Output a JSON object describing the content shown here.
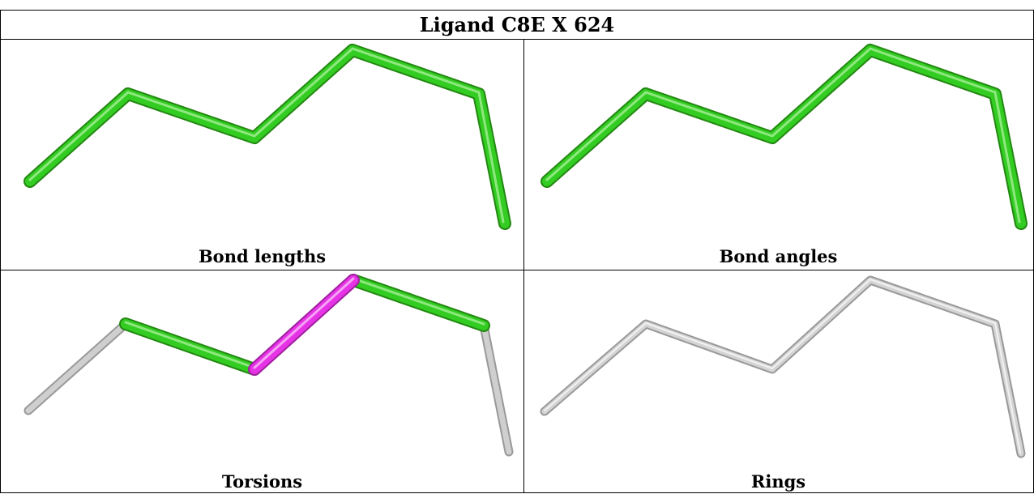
{
  "title": "Ligand C8E X 624",
  "panels": {
    "top_left": {
      "caption": "Bond lengths"
    },
    "top_right": {
      "caption": "Bond angles"
    },
    "bottom_left": {
      "caption": "Torsions"
    },
    "bottom_right": {
      "caption": "Rings"
    }
  },
  "colors": {
    "bond_green": "#33cc22",
    "bond_magenta": "#e633e6",
    "bond_grey": "#c8c8c8",
    "border": "#000000"
  }
}
